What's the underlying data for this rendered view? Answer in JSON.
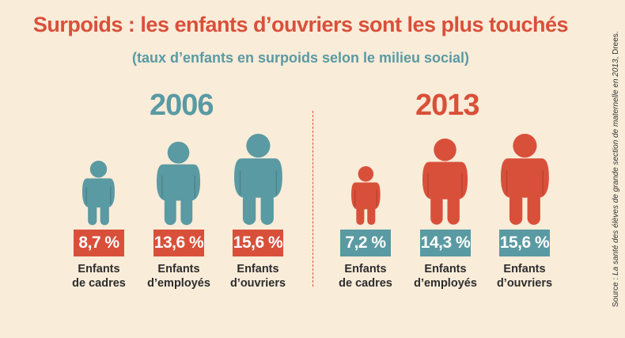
{
  "header": {
    "title": "Surpoids : les enfants d’ouvriers sont les plus touchés",
    "subtitle": "(taux d’enfants en surpoids selon le milieu social)"
  },
  "colors": {
    "background": "#f9ecd9",
    "teal": "#5a9aa3",
    "red": "#d9503a"
  },
  "source": {
    "prefix": "Source : ",
    "title": "La santé des élèves de grande section de maternelle en 2013",
    "suffix": ", Drees."
  },
  "chart_data": {
    "type": "bar",
    "title": "Surpoids : les enfants d’ouvriers sont les plus touchés",
    "subtitle": "(taux d’enfants en surpoids selon le milieu social)",
    "categories": [
      "Enfants de cadres",
      "Enfants d’employés",
      "Enfants d’ouvriers"
    ],
    "series": [
      {
        "name": "2006",
        "values": [
          8.7,
          13.6,
          15.6
        ],
        "labels": [
          "8,7 %",
          "13,6 %",
          "15,6 %"
        ],
        "figure_color": "#5a9aa3",
        "badge_color": "#d9503a"
      },
      {
        "name": "2013",
        "values": [
          7.2,
          14.3,
          15.6
        ],
        "labels": [
          "7,2 %",
          "14,3 %",
          "15,6 %"
        ],
        "figure_color": "#d9503a",
        "badge_color": "#5a9aa3"
      }
    ],
    "category_labels": [
      [
        "Enfants",
        "de cadres"
      ],
      [
        "Enfants",
        "d’employés"
      ],
      [
        "Enfants",
        "d’ouvriers"
      ]
    ]
  }
}
